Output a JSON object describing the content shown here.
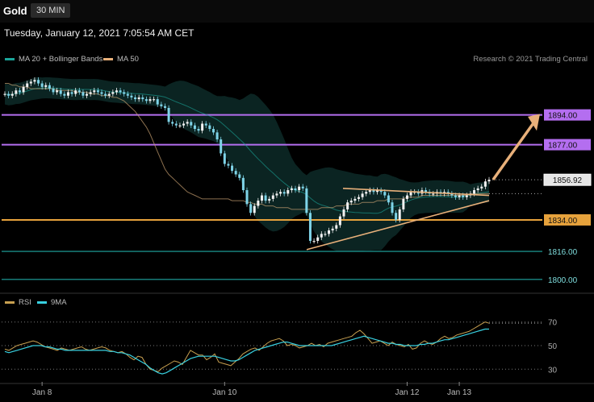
{
  "header": {
    "symbol": "Gold",
    "timeframe": "30 MIN"
  },
  "datetime": "Tuesday, January 12, 2021 7:05:54 AM CET",
  "legend": [
    {
      "label": "MA 20 + Bollinger Bands",
      "color": "#1aa59a"
    },
    {
      "label": "MA 50",
      "color": "#e8b07a"
    }
  ],
  "credit": "Research © 2021 Trading Central",
  "levels": [
    {
      "value": 1894.0,
      "label": "1894.00",
      "kind": "resistance",
      "color": "#b46ef0"
    },
    {
      "value": 1877.0,
      "label": "1877.00",
      "kind": "resistance",
      "color": "#b46ef0"
    },
    {
      "value": 1856.92,
      "label": "1856.92",
      "kind": "last",
      "color": "#e6e6e6"
    },
    {
      "value": 1834.0,
      "label": "1834.00",
      "kind": "support",
      "color": "#e6a23c"
    },
    {
      "value": 1816.0,
      "label": "1816.00",
      "kind": "support",
      "color": "#1a8a86"
    },
    {
      "value": 1800.0,
      "label": "1800.00",
      "kind": "support",
      "color": "#1a8a86"
    }
  ],
  "rsi_legend": [
    {
      "label": "RSI",
      "color": "#c8a050"
    },
    {
      "label": "9MA",
      "color": "#38d0e0"
    }
  ],
  "chart_data": {
    "type": "candlestick",
    "x_labels": [
      "Jan 8",
      "Jan 10",
      "Jan 12",
      "Jan 13"
    ],
    "x_label_positions": [
      10,
      59,
      108,
      122
    ],
    "price_axis": {
      "min": 1793,
      "max": 1921
    },
    "closes": [
      1906,
      1905,
      1906,
      1908,
      1907,
      1910,
      1912,
      1913,
      1914,
      1912,
      1910,
      1911,
      1909,
      1907,
      1908,
      1906,
      1905,
      1907,
      1906,
      1908,
      1907,
      1905,
      1906,
      1907,
      1908,
      1907,
      1906,
      1905,
      1906,
      1907,
      1908,
      1907,
      1906,
      1905,
      1904,
      1903,
      1904,
      1903,
      1902,
      1903,
      1903,
      1900,
      1899,
      1898,
      1890,
      1889,
      1888,
      1888,
      1889,
      1890,
      1888,
      1886,
      1885,
      1889,
      1888,
      1886,
      1884,
      1880,
      1872,
      1866,
      1865,
      1862,
      1860,
      1858,
      1851,
      1843,
      1838,
      1842,
      1845,
      1848,
      1845,
      1846,
      1848,
      1849,
      1850,
      1849,
      1851,
      1852,
      1851,
      1853,
      1852,
      1838,
      1822,
      1822,
      1824,
      1826,
      1826,
      1828,
      1829,
      1831,
      1836,
      1840,
      1844,
      1845,
      1846,
      1847,
      1849,
      1850,
      1851,
      1850,
      1851,
      1850,
      1848,
      1844,
      1838,
      1834,
      1840,
      1846,
      1848,
      1850,
      1850,
      1849,
      1851,
      1850,
      1849,
      1849,
      1850,
      1849,
      1850,
      1849,
      1848,
      1847,
      1848,
      1847,
      1848,
      1849,
      1851,
      1852,
      1853,
      1856,
      1857
    ],
    "ma50": [
      1912,
      1912,
      1911,
      1911,
      1910,
      1910,
      1910,
      1909,
      1909,
      1909,
      1909,
      1909,
      1909,
      1909,
      1908,
      1908,
      1908,
      1908,
      1908,
      1907,
      1907,
      1907,
      1907,
      1906,
      1906,
      1906,
      1905,
      1905,
      1905,
      1904,
      1904,
      1903,
      1902,
      1900,
      1898,
      1896,
      1893,
      1890,
      1887,
      1883,
      1878,
      1873,
      1868,
      1863,
      1860,
      1858,
      1856,
      1854,
      1852,
      1850,
      1849,
      1848,
      1847,
      1846,
      1846,
      1846,
      1846,
      1846,
      1846,
      1846,
      1846,
      1845,
      1845,
      1845,
      1845,
      1844,
      1844,
      1843,
      1843,
      1843,
      1842,
      1842,
      1842,
      1841,
      1841,
      1841,
      1841,
      1840,
      1840,
      1840,
      1840,
      1840,
      1840,
      1840,
      1840,
      1841,
      1841,
      1841,
      1841,
      1842,
      1842,
      1842,
      1843,
      1843,
      1843,
      1843,
      1844,
      1844,
      1844,
      1844,
      1845,
      1845,
      1845,
      1846,
      1846,
      1846,
      1846,
      1846,
      1847,
      1847,
      1847,
      1847,
      1848,
      1848,
      1848,
      1848,
      1848,
      1848,
      1848,
      1848,
      1848,
      1848,
      1848,
      1848,
      1848,
      1849,
      1849,
      1849,
      1849,
      1849,
      1849
    ],
    "bb_upper_offset": 6,
    "rsi": {
      "ticks": [
        30,
        50,
        70
      ],
      "ylim": [
        22,
        78
      ],
      "rsi_values": [
        47,
        46,
        48,
        50,
        51,
        52,
        53,
        54,
        53,
        51,
        49,
        48,
        47,
        46,
        48,
        47,
        46,
        47,
        48,
        49,
        47,
        46,
        47,
        48,
        49,
        48,
        46,
        45,
        44,
        45,
        43,
        40,
        38,
        41,
        40,
        34,
        30,
        29,
        28,
        31,
        33,
        35,
        37,
        36,
        34,
        40,
        46,
        44,
        42,
        42,
        38,
        40,
        43,
        36,
        35,
        34,
        33,
        36,
        39,
        43,
        45,
        47,
        48,
        46,
        49,
        52,
        54,
        55,
        56,
        54,
        50,
        51,
        50,
        48,
        49,
        50,
        52,
        50,
        51,
        49,
        52,
        53,
        54,
        55,
        56,
        57,
        58,
        61,
        63,
        60,
        56,
        52,
        53,
        54,
        52,
        50,
        53,
        51,
        50,
        49,
        51,
        47,
        48,
        52,
        54,
        52,
        51,
        53,
        56,
        58,
        56,
        57,
        59,
        60,
        61,
        62,
        64,
        66,
        68,
        70,
        69
      ],
      "ma9_values": [
        45,
        44,
        45,
        46,
        47,
        48,
        49,
        50,
        50,
        50,
        49,
        49,
        48,
        47,
        47,
        46,
        46,
        46,
        46,
        46,
        46,
        46,
        46,
        46,
        46,
        46,
        45,
        45,
        44,
        44,
        43,
        42,
        40,
        38,
        36,
        34,
        31,
        29,
        27,
        26,
        27,
        29,
        31,
        33,
        35,
        37,
        39,
        40,
        41,
        41,
        41,
        41,
        41,
        40,
        39,
        38,
        37,
        37,
        38,
        40,
        42,
        44,
        46,
        47,
        48,
        49,
        50,
        51,
        52,
        53,
        53,
        52,
        51,
        50,
        50,
        50,
        50,
        50,
        50,
        50,
        50,
        50,
        51,
        52,
        53,
        54,
        55,
        56,
        57,
        58,
        57,
        56,
        55,
        54,
        53,
        52,
        52,
        51,
        51,
        50,
        50,
        50,
        50,
        51,
        51,
        52,
        52,
        53,
        54,
        55,
        55,
        56,
        57,
        58,
        59,
        60,
        61,
        62,
        63,
        64,
        64
      ]
    }
  }
}
